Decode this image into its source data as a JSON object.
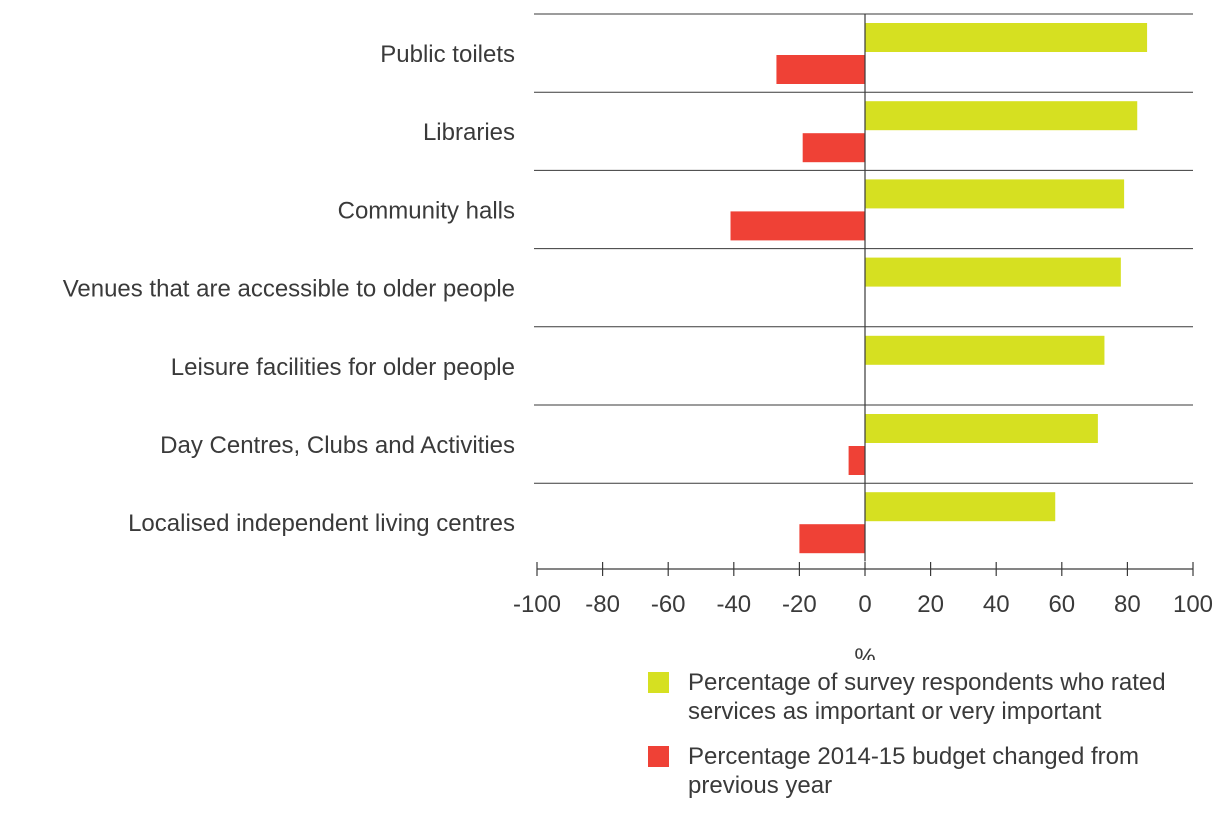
{
  "chart_data": {
    "type": "bar",
    "orientation": "horizontal",
    "categories": [
      "Public toilets",
      "Libraries",
      "Community halls",
      "Venues that are accessible to older people",
      "Leisure facilities for older people",
      "Day Centres, Clubs and Activities",
      "Localised independent living centres"
    ],
    "series": [
      {
        "name": "Percentage of survey respondents who rated\nservices as important or very important",
        "color": "#d6e021",
        "values": [
          86,
          83,
          79,
          78,
          73,
          71,
          58
        ]
      },
      {
        "name": "Percentage 2014-15 budget changed from\nprevious year",
        "color": "#ef4136",
        "values": [
          -27,
          -19,
          -41,
          null,
          null,
          -5,
          -20
        ]
      }
    ],
    "xlabel": "%",
    "xlim": [
      -100,
      100
    ],
    "xticks": [
      -100,
      -80,
      -60,
      -40,
      -20,
      0,
      20,
      40,
      60,
      80,
      100
    ],
    "gridlines": "horizontal category separators",
    "legend_position": "bottom-right"
  }
}
